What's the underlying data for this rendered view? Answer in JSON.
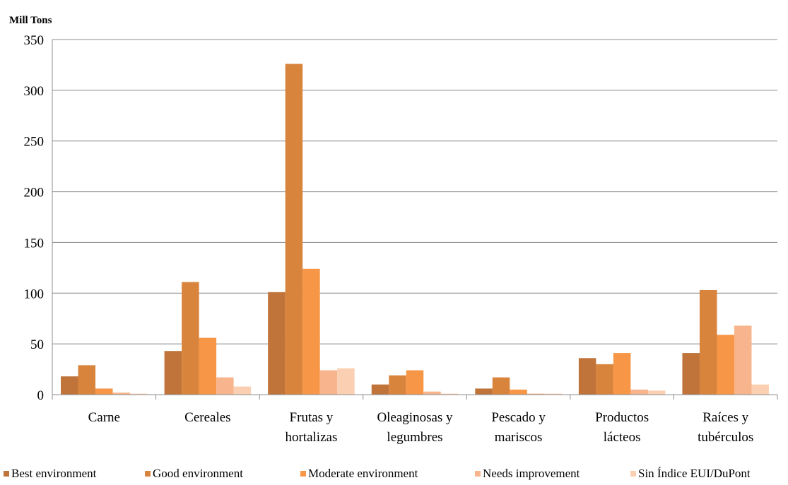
{
  "chart_data": {
    "type": "bar",
    "ylabel": "Mill Tons",
    "ylim": [
      0,
      350
    ],
    "yticks": [
      0,
      50,
      100,
      150,
      200,
      250,
      300,
      350
    ],
    "grid": true,
    "legend_position": "bottom",
    "categories": [
      [
        "Carne"
      ],
      [
        "Cereales"
      ],
      [
        "Frutas y",
        "hortalizas"
      ],
      [
        "Oleaginosas y",
        "legumbres"
      ],
      [
        "Pescado y",
        "mariscos"
      ],
      [
        "Productos",
        "lácteos"
      ],
      [
        "Raíces y",
        "tubérculos"
      ]
    ],
    "series": [
      {
        "name": "Best environment",
        "color": "#C0743A",
        "values": [
          18,
          43,
          101,
          10,
          6,
          36,
          41
        ]
      },
      {
        "name": "Good environment",
        "color": "#D9843D",
        "values": [
          29,
          111,
          326,
          19,
          17,
          30,
          103
        ]
      },
      {
        "name": "Moderate environment",
        "color": "#F79646",
        "values": [
          6,
          56,
          124,
          24,
          5,
          41,
          59
        ]
      },
      {
        "name": "Needs improvement",
        "color": "#F8B48C",
        "values": [
          2,
          17,
          24,
          3,
          1,
          5,
          68
        ]
      },
      {
        "name": "Sin Índice EUI/DuPont",
        "color": "#FBD0B2",
        "values": [
          1,
          8,
          26,
          1,
          1,
          4,
          10
        ]
      }
    ]
  }
}
